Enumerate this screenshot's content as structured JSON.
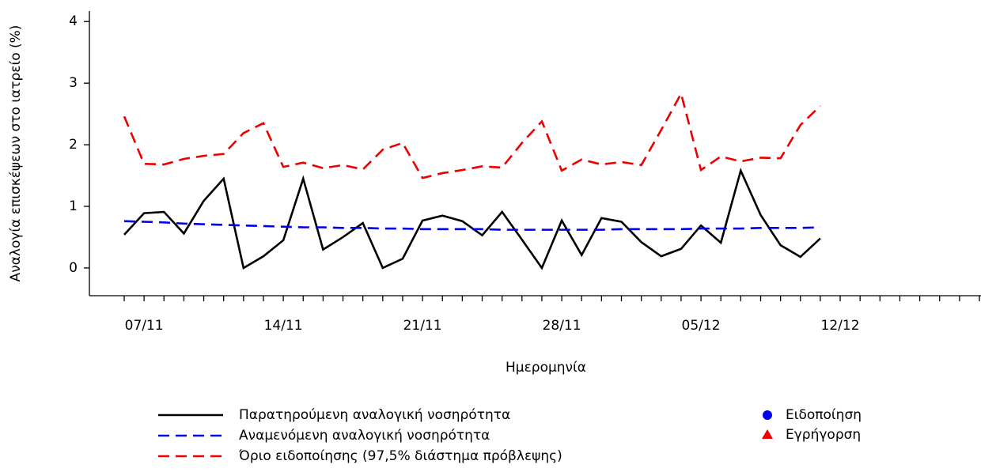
{
  "chart_data": {
    "type": "line",
    "x_label": "Ημερομηνία",
    "y_label": "Αναλογία επισκέψεων στο ιατρείο (%)",
    "categories": [
      null,
      "07/11",
      null,
      null,
      null,
      null,
      null,
      null,
      "14/11",
      null,
      null,
      null,
      null,
      null,
      null,
      "21/11",
      null,
      null,
      null,
      null,
      null,
      null,
      "28/11",
      null,
      null,
      null,
      null,
      null,
      null,
      "05/12",
      null,
      null,
      null,
      null,
      null,
      null,
      "12/12",
      null,
      null,
      null,
      null,
      null,
      null,
      null
    ],
    "ylim": [
      -0.45,
      4.17
    ],
    "yticks": [
      0,
      1,
      2,
      3,
      4
    ],
    "grid": false,
    "series": [
      {
        "name": "Παρατηρούμενη αναλογική νοσηρότητα",
        "color": "#000000",
        "dash": false,
        "values": [
          0.54,
          0.89,
          0.91,
          0.56,
          1.09,
          1.45,
          0,
          0.19,
          0.45,
          1.45,
          0.3,
          0.5,
          0.73,
          0,
          0.15,
          0.77,
          0.85,
          0.76,
          0.53,
          0.91,
          0.46,
          0,
          0.77,
          0.21,
          0.81,
          0.75,
          0.42,
          0.19,
          0.31,
          0.69,
          0.41,
          1.58,
          0.86,
          0.37,
          0.18,
          0.48,
          null,
          null,
          null,
          null,
          null,
          null,
          null,
          null
        ]
      },
      {
        "name": "Αναμενόμενη αναλογική νοσηρότητα",
        "color": "#0000ee",
        "dash": true,
        "values": [
          0.76,
          0.75,
          0.74,
          0.72,
          0.71,
          0.7,
          0.69,
          0.68,
          0.67,
          0.66,
          0.66,
          0.65,
          0.65,
          0.64,
          0.64,
          0.63,
          0.63,
          0.63,
          0.63,
          0.62,
          0.62,
          0.62,
          0.62,
          0.62,
          0.62,
          0.63,
          0.63,
          0.63,
          0.63,
          0.64,
          0.64,
          0.64,
          0.65,
          0.65,
          0.65,
          0.66,
          null,
          null,
          null,
          null,
          null,
          null,
          null,
          null
        ]
      },
      {
        "name": "Όριο ειδοποίησης (97,5% διάστημα πρόβλεψης)",
        "color": "#ee0000",
        "dash": true,
        "values": [
          2.46,
          1.69,
          1.68,
          1.77,
          1.82,
          1.85,
          2.19,
          2.35,
          1.64,
          1.71,
          1.62,
          1.67,
          1.6,
          1.92,
          2.03,
          1.46,
          1.54,
          1.59,
          1.65,
          1.63,
          2.03,
          2.38,
          1.58,
          1.76,
          1.68,
          1.72,
          1.67,
          2.24,
          2.83,
          1.59,
          1.81,
          1.73,
          1.79,
          1.78,
          2.32,
          2.63,
          null,
          null,
          null,
          null,
          null,
          null,
          null,
          null
        ]
      },
      {
        "name": "Ειδοποίηση",
        "color": "#0000ee",
        "marker": "circle",
        "values": [
          null,
          null,
          null,
          null,
          null,
          null,
          null,
          null,
          null,
          null,
          null,
          null,
          null,
          null,
          null,
          null,
          null,
          null,
          null,
          null,
          null,
          null,
          null,
          null,
          null,
          null,
          null,
          null,
          null,
          null,
          null,
          null,
          null,
          null,
          null,
          null,
          null,
          null,
          null,
          null,
          null,
          null,
          null,
          null
        ]
      },
      {
        "name": "Εγρήγορση",
        "color": "#ee0000",
        "marker": "triangle",
        "values": [
          null,
          null,
          null,
          null,
          null,
          null,
          null,
          null,
          null,
          null,
          null,
          null,
          null,
          null,
          null,
          null,
          null,
          null,
          null,
          null,
          null,
          null,
          null,
          null,
          null,
          null,
          null,
          null,
          null,
          null,
          null,
          null,
          null,
          null,
          null,
          null,
          null,
          null,
          null,
          null,
          null,
          null,
          null,
          null
        ]
      }
    ]
  }
}
